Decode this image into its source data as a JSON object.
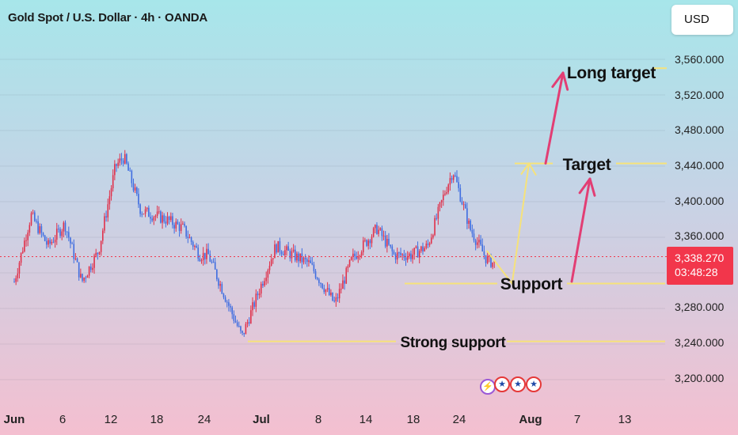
{
  "header": {
    "title": "Gold Spot / U.S. Dollar · 4h · OANDA",
    "currency": "USD"
  },
  "price_label": {
    "price": "3,338.270",
    "countdown": "03:48:28"
  },
  "annotations": {
    "long_target": "Long target",
    "target": "Target",
    "support": "Support",
    "strong_support": "Strong support"
  },
  "event_icons": [
    "lightning-icon",
    "us-flag-icon",
    "us-flag-icon",
    "us-flag-icon"
  ],
  "colors": {
    "up": "#e0314b",
    "down": "#3f6de0",
    "level_line": "#f6e27a",
    "arrow": "#e23e74",
    "price_line": "#f2364b"
  },
  "chart_data": {
    "type": "candlestick",
    "y_ticks": [
      "3,560.000",
      "3,520.000",
      "3,480.000",
      "3,440.000",
      "3,400.000",
      "3,360.000",
      "3,280.000",
      "3,240.000",
      "3,200.000"
    ],
    "x_ticks": [
      "Jun",
      "6",
      "12",
      "18",
      "24",
      "Jul",
      "8",
      "14",
      "18",
      "24",
      "Aug",
      "7",
      "13"
    ],
    "ylim": [
      3180,
      3590
    ],
    "last_price": 3338.27,
    "levels": {
      "long_target": 3550,
      "target": 3443,
      "support": 3308,
      "strong_support": 3243
    },
    "price_path": [
      [
        "Jun 1",
        3310
      ],
      [
        "Jun 3",
        3385
      ],
      [
        "Jun 5",
        3350
      ],
      [
        "Jun 7",
        3375
      ],
      [
        "Jun 9",
        3310
      ],
      [
        "Jun 11",
        3345
      ],
      [
        "Jun 13",
        3440
      ],
      [
        "Jun 14",
        3450
      ],
      [
        "Jun 16",
        3390
      ],
      [
        "Jun 19",
        3380
      ],
      [
        "Jun 21",
        3370
      ],
      [
        "Jun 23",
        3340
      ],
      [
        "Jun 24",
        3340
      ],
      [
        "Jun 27",
        3270
      ],
      [
        "Jun 28",
        3248
      ],
      [
        "Jun 30",
        3300
      ],
      [
        "Jul 2",
        3350
      ],
      [
        "Jul 4",
        3340
      ],
      [
        "Jul 6",
        3330
      ],
      [
        "Jul 9",
        3285
      ],
      [
        "Jul 11",
        3335
      ],
      [
        "Jul 14",
        3370
      ],
      [
        "Jul 16",
        3340
      ],
      [
        "Jul 18",
        3340
      ],
      [
        "Jul 20",
        3350
      ],
      [
        "Jul 22",
        3410
      ],
      [
        "Jul 23",
        3435
      ],
      [
        "Jul 25",
        3370
      ],
      [
        "Jul 27",
        3335
      ],
      [
        "Jul 28",
        3330
      ]
    ],
    "projection": [
      [
        "Jul 30",
        3308
      ],
      [
        "Aug 1",
        3443
      ],
      [
        "Aug 3",
        3443
      ],
      [
        "Aug 6",
        3550
      ]
    ]
  }
}
